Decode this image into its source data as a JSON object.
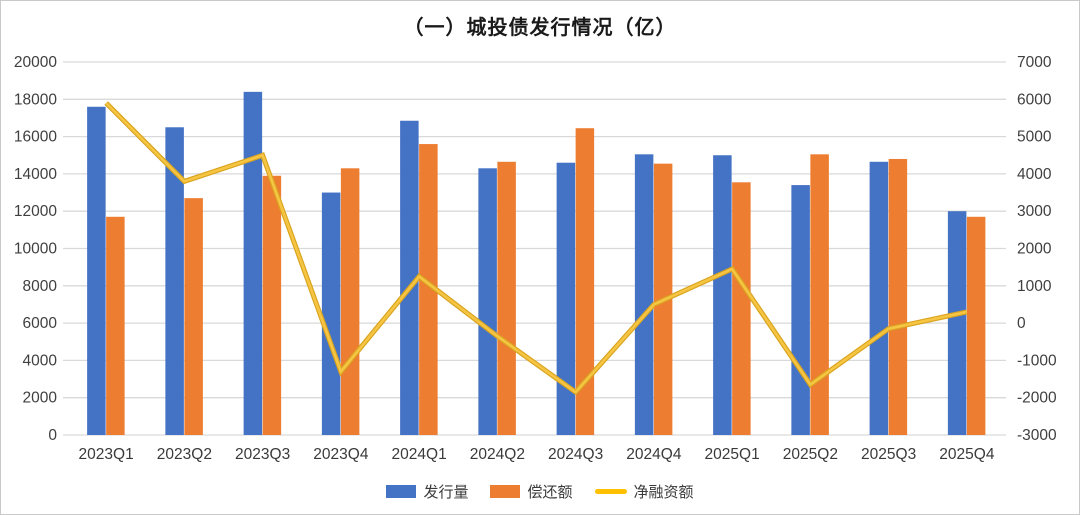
{
  "panel": {
    "title": "（一）城投债发行情况（亿）"
  },
  "chart_data": {
    "type": "bar",
    "subtype": "grouped-bars-with-line",
    "title": "（一）城投债发行情况（亿）",
    "categories": [
      "2023Q1",
      "2023Q2",
      "2023Q3",
      "2023Q4",
      "2024Q1",
      "2024Q2",
      "2024Q3",
      "2024Q4",
      "2025Q1",
      "2025Q2",
      "2025Q3",
      "2025Q4"
    ],
    "series": [
      {
        "name": "发行量",
        "type": "bar",
        "axis": "left",
        "color": "#4472C4",
        "values": [
          17600,
          16500,
          18400,
          13000,
          16850,
          14300,
          14600,
          15050,
          15000,
          13400,
          14650,
          12000
        ]
      },
      {
        "name": "偿还额",
        "type": "bar",
        "axis": "left",
        "color": "#ED7D31",
        "values": [
          11700,
          12700,
          13900,
          14300,
          15600,
          14650,
          16450,
          14550,
          13550,
          15050,
          14800,
          11700
        ]
      },
      {
        "name": "净融资额",
        "type": "line",
        "axis": "right",
        "color": "#FFC000",
        "values": [
          5900,
          3800,
          4500,
          -1300,
          1250,
          -350,
          -1850,
          500,
          1450,
          -1650,
          -150,
          300
        ]
      }
    ],
    "left_axis": {
      "min": 0,
      "max": 20000,
      "step": 2000
    },
    "right_axis": {
      "min": -3000,
      "max": 7000,
      "step": 1000
    },
    "grid": true,
    "gridline_color": "#D9D9D9",
    "axis_label_color": "#3f3f3f",
    "legend_position": "bottom"
  }
}
